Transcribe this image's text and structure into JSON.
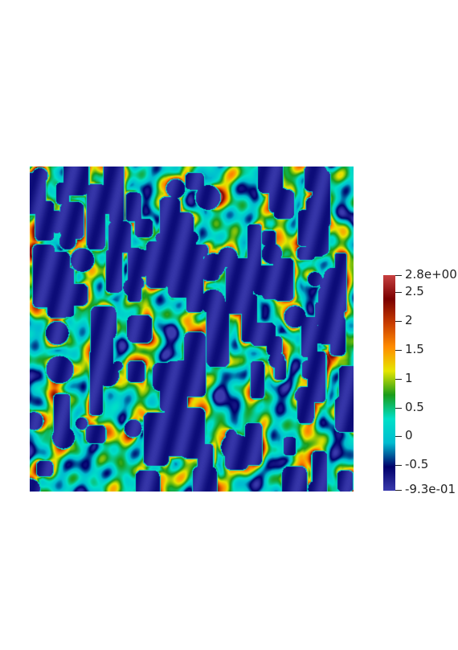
{
  "colorbar": {
    "range_min": -0.93,
    "range_max": 2.8,
    "colormap": "jet",
    "colors": [
      "#3a3aad",
      "#00006a",
      "#00bcd0",
      "#00e0c8",
      "#1a9c1a",
      "#e6e600",
      "#ff8c00",
      "#c83c00",
      "#7a0000",
      "#c84040"
    ],
    "ticks": [
      {
        "value": 2.8,
        "label": "2.8e+00"
      },
      {
        "value": 2.5,
        "label": "2.5"
      },
      {
        "value": 2.0,
        "label": "2"
      },
      {
        "value": 1.5,
        "label": "1.5"
      },
      {
        "value": 1.0,
        "label": "1"
      },
      {
        "value": 0.5,
        "label": "0.5"
      },
      {
        "value": 0.0,
        "label": "0"
      },
      {
        "value": -0.5,
        "label": "-0.5"
      },
      {
        "value": -0.93,
        "label": "-9.3e-01"
      }
    ]
  }
}
